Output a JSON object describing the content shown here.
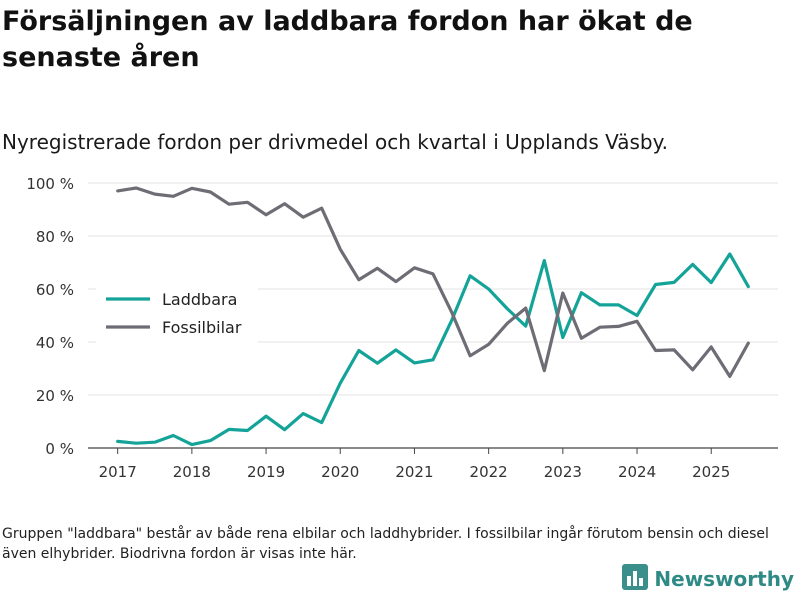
{
  "title": "Försäljningen av laddbara fordon har ökat de senaste åren",
  "subtitle": "Nyregistrerade fordon per drivmedel och kvartal i Upplands Väsby.",
  "footnote": "Gruppen \"laddbara\" består av både rena elbilar och laddhybrider. I fossilbilar ingår förutom bensin och diesel även elhybrider. Biodrivna fordon är visas inte här.",
  "brand": {
    "name": "Newsworthy",
    "icon": "bar-chart-logo-icon",
    "color": "#3a8f8b"
  },
  "chart_data": {
    "type": "line",
    "title": "Nyregistrerade fordon per drivmedel och kvartal i Upplands Väsby.",
    "xlabel": "",
    "ylabel": "",
    "xlim": [
      2016.6,
      2025.9
    ],
    "ylim": [
      0,
      100
    ],
    "grid": true,
    "legend_position": "middle-left",
    "x_ticks": [
      2017,
      2018,
      2019,
      2020,
      2021,
      2022,
      2023,
      2024,
      2025
    ],
    "x_tick_labels": [
      "2017",
      "2018",
      "2019",
      "2020",
      "2021",
      "2022",
      "2023",
      "2024",
      "2025"
    ],
    "y_ticks": [
      0,
      20,
      40,
      60,
      80,
      100
    ],
    "y_tick_labels": [
      "0 %",
      "20 %",
      "40 %",
      "60 %",
      "80 %",
      "100 %"
    ],
    "x": [
      2017.0,
      2017.25,
      2017.5,
      2017.75,
      2018.0,
      2018.25,
      2018.5,
      2018.75,
      2019.0,
      2019.25,
      2019.5,
      2019.75,
      2020.0,
      2020.25,
      2020.5,
      2020.75,
      2021.0,
      2021.25,
      2021.5,
      2021.75,
      2022.0,
      2022.25,
      2022.5,
      2022.75,
      2023.0,
      2023.25,
      2023.5,
      2023.75,
      2024.0,
      2024.25,
      2024.5,
      2024.75,
      2025.0,
      2025.25,
      2025.5
    ],
    "series": [
      {
        "name": "Laddbara",
        "color": "#14a398",
        "values": [
          2.5,
          1.8,
          2.2,
          4.7,
          1.3,
          2.8,
          7.0,
          6.6,
          12.0,
          6.9,
          13.0,
          9.6,
          24.5,
          36.8,
          32.0,
          37.0,
          32.1,
          33.3,
          48.0,
          65.0,
          60.0,
          52.6,
          46.0,
          70.7,
          41.7,
          58.6,
          54.0,
          54.0,
          50.0,
          61.7,
          62.5,
          69.3,
          62.4,
          73.2,
          60.9
        ]
      },
      {
        "name": "Fossilbilar",
        "color": "#6e6d75",
        "values": [
          97.0,
          98.1,
          95.8,
          95.0,
          98.0,
          96.6,
          92.0,
          92.7,
          88.0,
          92.2,
          87.1,
          90.5,
          75.0,
          63.5,
          67.8,
          62.8,
          68.0,
          65.7,
          51.4,
          34.8,
          39.1,
          47.0,
          52.8,
          29.2,
          58.5,
          41.4,
          45.6,
          45.9,
          47.8,
          36.8,
          37.0,
          29.5,
          38.1,
          27.0,
          39.6
        ]
      }
    ]
  }
}
